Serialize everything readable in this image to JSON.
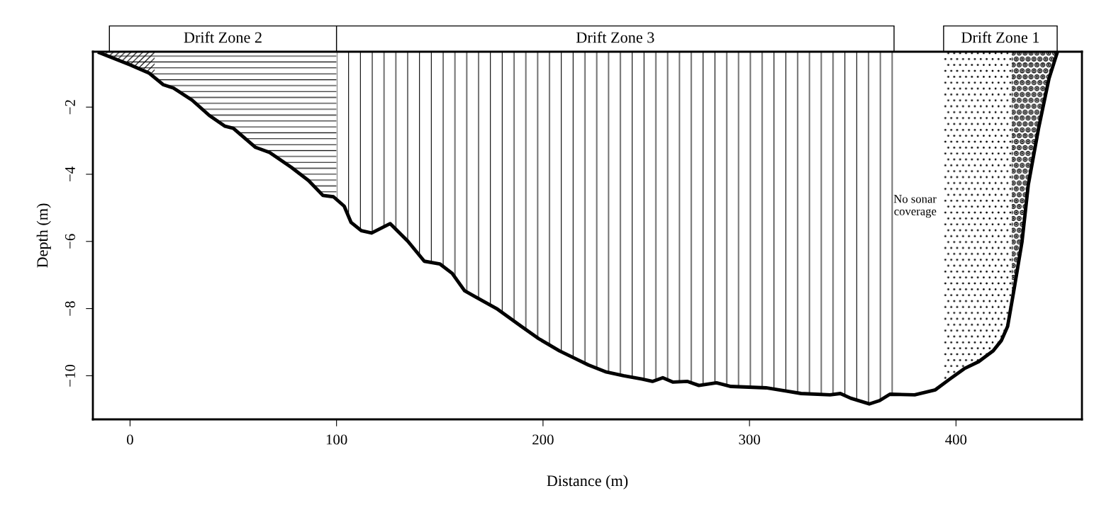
{
  "chart_data": {
    "type": "line",
    "xlabel": "Distance (m)",
    "ylabel": "Depth (m)",
    "x": [
      -14.8,
      0,
      9.3,
      16,
      21,
      30,
      38.4,
      46,
      50,
      60.8,
      67.6,
      78,
      86.5,
      93.4,
      98.5,
      103.7,
      107,
      112,
      117,
      126,
      134.6,
      142.5,
      150,
      156,
      162,
      167,
      177.5,
      189.5,
      198,
      208,
      222,
      230.7,
      239,
      248,
      253,
      258,
      263,
      270,
      275.5,
      284,
      291,
      308,
      318,
      325,
      339,
      344,
      349,
      358,
      363,
      368,
      380,
      390,
      397,
      404,
      411,
      418,
      422,
      425,
      428,
      432,
      435,
      440,
      445,
      449
    ],
    "series": [
      {
        "color": "#000000",
        "values": [
          -0.38,
          -0.74,
          -0.99,
          -1.33,
          -1.43,
          -1.79,
          -2.25,
          -2.57,
          -2.63,
          -3.2,
          -3.35,
          -3.79,
          -4.19,
          -4.63,
          -4.67,
          -4.95,
          -5.43,
          -5.68,
          -5.75,
          -5.47,
          -6.0,
          -6.59,
          -6.67,
          -6.95,
          -7.47,
          -7.64,
          -8.0,
          -8.53,
          -8.9,
          -9.26,
          -9.68,
          -9.89,
          -10.0,
          -10.1,
          -10.17,
          -10.06,
          -10.19,
          -10.17,
          -10.29,
          -10.21,
          -10.32,
          -10.36,
          -10.46,
          -10.53,
          -10.57,
          -10.53,
          -10.67,
          -10.84,
          -10.74,
          -10.55,
          -10.57,
          -10.42,
          -10.1,
          -9.79,
          -9.58,
          -9.26,
          -8.95,
          -8.53,
          -7.47,
          -6.0,
          -4.32,
          -2.63,
          -1.16,
          -0.38
        ]
      }
    ],
    "xlim": [
      -18,
      461
    ],
    "ylim": [
      -11.3,
      -0.35
    ],
    "xticks": [
      0,
      100,
      200,
      300,
      400
    ],
    "yticks": [
      {
        "value": -2,
        "label": "−2"
      },
      {
        "value": -4,
        "label": "−4"
      },
      {
        "value": -6,
        "label": "−6"
      },
      {
        "value": -8,
        "label": "−8"
      },
      {
        "value": -10,
        "label": "−10"
      }
    ],
    "bands": [
      {
        "axis": "x",
        "from": -14.8,
        "to": 12,
        "label": null
      },
      {
        "axis": "x",
        "from": -10,
        "to": 100,
        "label": "Drift Zone 2"
      },
      {
        "axis": "x",
        "from": 100,
        "to": 370,
        "label": "Drift Zone 3"
      },
      {
        "axis": "x",
        "from": 394,
        "to": 449,
        "label": "Drift Zone 1"
      },
      {
        "axis": "x",
        "from": 427,
        "to": 449,
        "label": null
      }
    ],
    "annotations": [
      "No sonar\ncoverage"
    ],
    "grid": false,
    "legend": false,
    "marker": "none",
    "line_style": "solid"
  }
}
